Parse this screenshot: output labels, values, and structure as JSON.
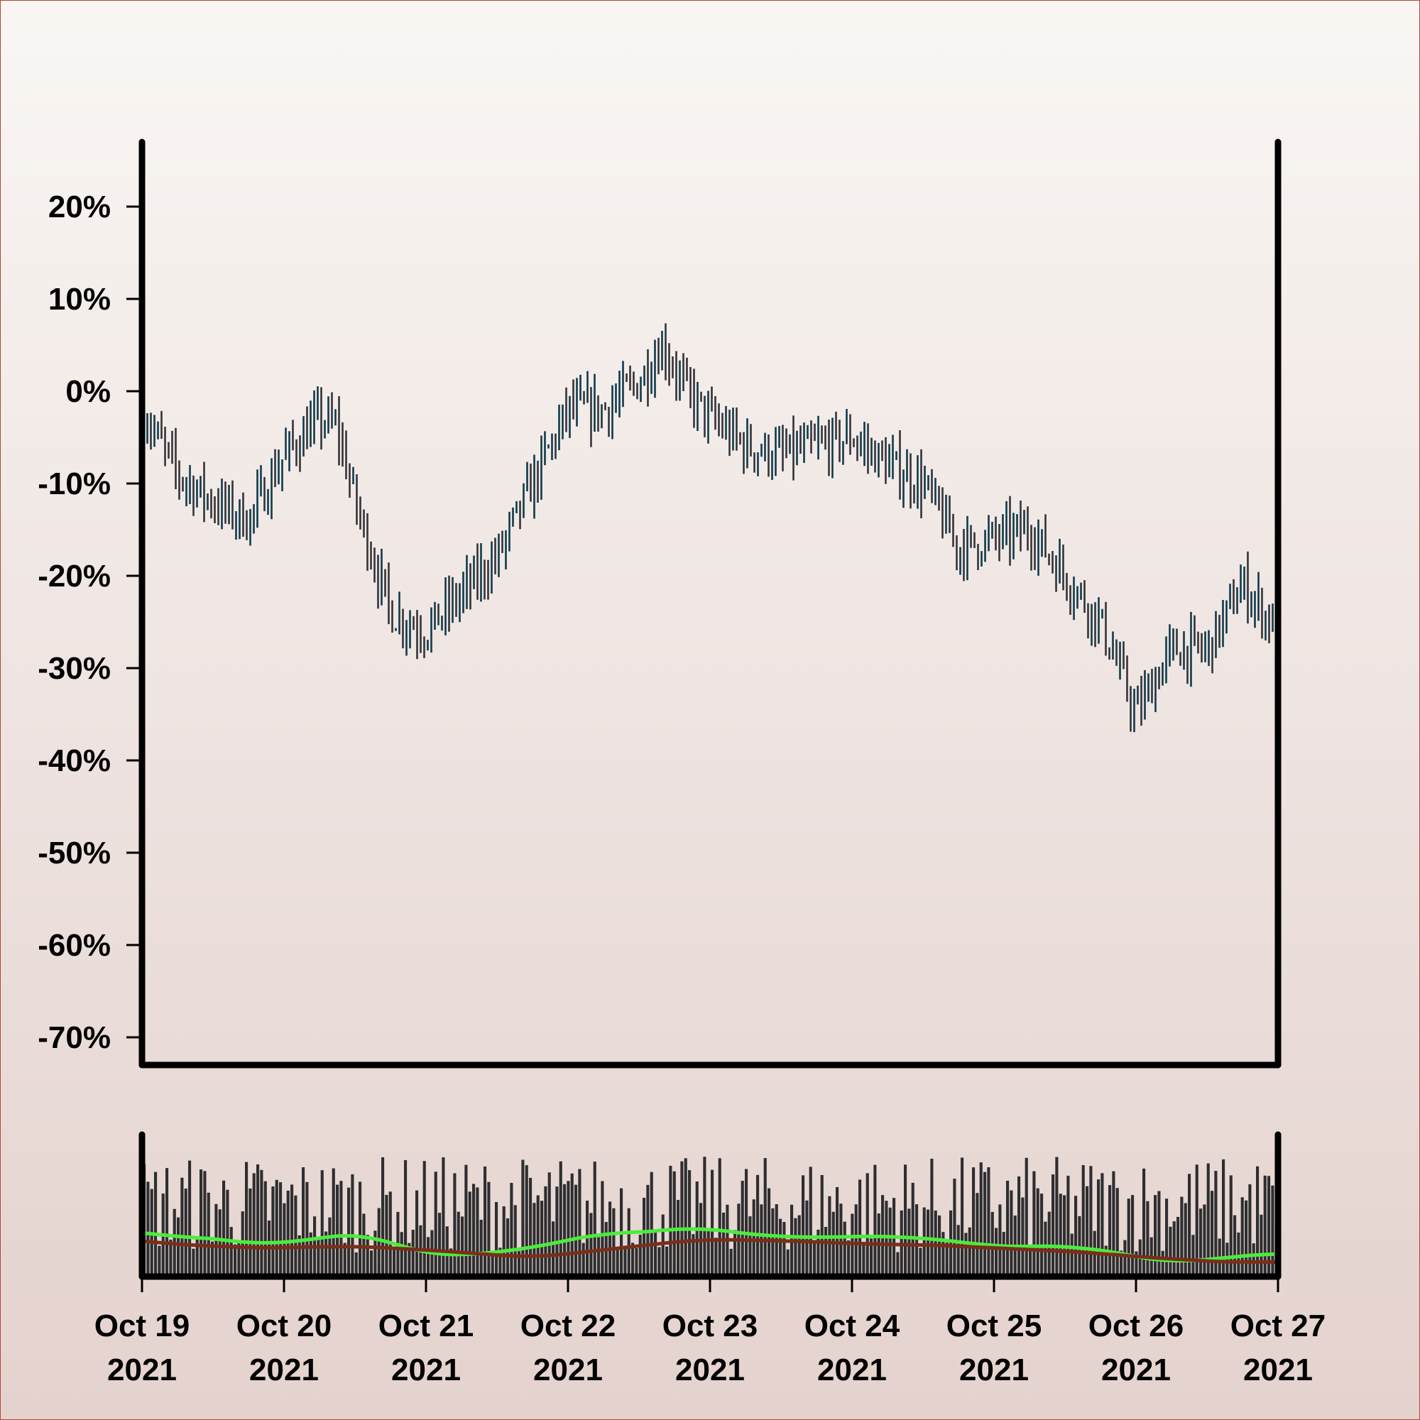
{
  "chart_data": {
    "type": "ohlc",
    "yaxis": {
      "ticks": [
        "20%",
        "10%",
        "0%",
        "-10%",
        "-20%",
        "-30%",
        "-40%",
        "-50%",
        "-60%",
        "-70%"
      ],
      "tick_values": [
        20,
        10,
        0,
        -10,
        -20,
        -30,
        -40,
        -50,
        -60,
        -70
      ],
      "range": [
        -73,
        27
      ],
      "unit": "%"
    },
    "xaxis": {
      "range": [
        "2021-10-19",
        "2021-10-27"
      ],
      "ticks": [
        {
          "date": "2021-10-19",
          "line1": "Oct 19",
          "line2": "2021"
        },
        {
          "date": "2021-10-20",
          "line1": "Oct 20",
          "line2": "2021"
        },
        {
          "date": "2021-10-21",
          "line1": "Oct 21",
          "line2": "2021"
        },
        {
          "date": "2021-10-22",
          "line1": "Oct 22",
          "line2": "2021"
        },
        {
          "date": "2021-10-23",
          "line1": "Oct 23",
          "line2": "2021"
        },
        {
          "date": "2021-10-24",
          "line1": "Oct 24",
          "line2": "2021"
        },
        {
          "date": "2021-10-25",
          "line1": "Oct 25",
          "line2": "2021"
        },
        {
          "date": "2021-10-26",
          "line1": "Oct 26",
          "line2": "2021"
        },
        {
          "date": "2021-10-27",
          "line1": "Oct 27",
          "line2": "2021"
        }
      ]
    },
    "price_series": {
      "color": "#0f3a4a",
      "daily_close_percent": [
        {
          "date": "2021-10-19 00:00",
          "value": -2
        },
        {
          "date": "2021-10-19 06:00",
          "value": -9
        },
        {
          "date": "2021-10-19 12:00",
          "value": -12
        },
        {
          "date": "2021-10-19 18:00",
          "value": -14
        },
        {
          "date": "2021-10-20 00:00",
          "value": -7
        },
        {
          "date": "2021-10-20 06:00",
          "value": -3
        },
        {
          "date": "2021-10-20 09:00",
          "value": -4
        },
        {
          "date": "2021-10-20 12:00",
          "value": -12
        },
        {
          "date": "2021-10-20 18:00",
          "value": -24
        },
        {
          "date": "2021-10-21 00:00",
          "value": -26
        },
        {
          "date": "2021-10-21 06:00",
          "value": -22
        },
        {
          "date": "2021-10-21 12:00",
          "value": -18
        },
        {
          "date": "2021-10-21 18:00",
          "value": -10
        },
        {
          "date": "2021-10-22 00:00",
          "value": -2
        },
        {
          "date": "2021-10-22 06:00",
          "value": -2
        },
        {
          "date": "2021-10-22 12:00",
          "value": 1
        },
        {
          "date": "2021-10-22 16:00",
          "value": 5
        },
        {
          "date": "2021-10-22 20:00",
          "value": 0
        },
        {
          "date": "2021-10-23 00:00",
          "value": -3
        },
        {
          "date": "2021-10-23 06:00",
          "value": -6
        },
        {
          "date": "2021-10-23 12:00",
          "value": -7
        },
        {
          "date": "2021-10-23 18:00",
          "value": -6
        },
        {
          "date": "2021-10-24 00:00",
          "value": -5
        },
        {
          "date": "2021-10-24 06:00",
          "value": -8
        },
        {
          "date": "2021-10-24 12:00",
          "value": -10
        },
        {
          "date": "2021-10-24 18:00",
          "value": -17
        },
        {
          "date": "2021-10-25 00:00",
          "value": -16
        },
        {
          "date": "2021-10-25 06:00",
          "value": -15
        },
        {
          "date": "2021-10-25 12:00",
          "value": -20
        },
        {
          "date": "2021-10-25 18:00",
          "value": -25
        },
        {
          "date": "2021-10-26 00:00",
          "value": -35
        },
        {
          "date": "2021-10-26 06:00",
          "value": -28
        },
        {
          "date": "2021-10-26 12:00",
          "value": -28
        },
        {
          "date": "2021-10-26 18:00",
          "value": -21
        },
        {
          "date": "2021-10-27 00:00",
          "value": -26
        }
      ]
    },
    "volume_panel": {
      "bar_color": "#2e2e30",
      "ma_fast_color": "#4bec3c",
      "ma_slow_color": "#7a2e1a"
    }
  }
}
